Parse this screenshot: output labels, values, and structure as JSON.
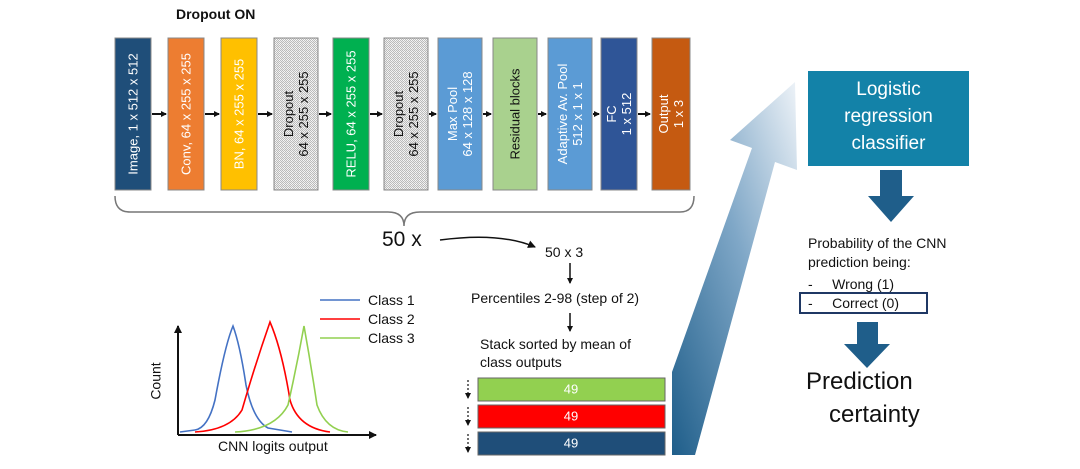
{
  "title": "Dropout ON",
  "colors": {
    "image_block": "#1f4e79",
    "conv_block": "#ed7d31",
    "bn_block": "#ffc000",
    "relu_block": "#00b050",
    "maxpool_block": "#5b9bd5",
    "residual_block": "#a9d18e",
    "adaptive_block": "#5b9bd5",
    "fc_block": "#2f5597",
    "output_block": "#c55a11",
    "logistic_block": "#1382a8",
    "stack_green": "#92d050",
    "stack_red": "#ff0000",
    "stack_navy": "#1f4e79",
    "class1": "#4472c4",
    "class2": "#ff0000",
    "class3": "#92d050"
  },
  "network": {
    "blocks": [
      {
        "id": "image",
        "line1": "Image, 1 x 512 x 512",
        "line2": ""
      },
      {
        "id": "conv",
        "line1": "Conv, 64 x 255 x 255",
        "line2": ""
      },
      {
        "id": "bn",
        "line1": "BN, 64 x 255 x 255",
        "line2": ""
      },
      {
        "id": "dropout1",
        "line1": "Dropout",
        "line2": "64 x 255 x 255"
      },
      {
        "id": "relu",
        "line1": "RELU, 64 x 255 x 255",
        "line2": ""
      },
      {
        "id": "dropout2",
        "line1": "Dropout",
        "line2": "64 x 255 x 255"
      },
      {
        "id": "maxpool",
        "line1": "Max Pool",
        "line2": "64 x 128 x 128"
      },
      {
        "id": "residual",
        "line1": "Residual blocks",
        "line2": ""
      },
      {
        "id": "adaptive",
        "line1": "Adaptive Av. Pool",
        "line2": "512 x 1 x 1"
      },
      {
        "id": "fc",
        "line1": "FC",
        "line2": "1 x 512"
      },
      {
        "id": "output",
        "line1": "Output",
        "line2": "1 x 3"
      }
    ]
  },
  "repeat_label": "50 x",
  "flow": {
    "step1": "50 x 3",
    "step2": "Percentiles 2-98 (step of 2)",
    "step3_line1": "Stack sorted by mean of",
    "step3_line2": "class outputs"
  },
  "stack": [
    {
      "value": "49",
      "color": "green"
    },
    {
      "value": "49",
      "color": "red"
    },
    {
      "value": "49",
      "color": "navy"
    }
  ],
  "chart": {
    "xlabel": "CNN  logits output",
    "ylabel": "Count",
    "legend": [
      "Class 1",
      "Class 2",
      "Class 3"
    ]
  },
  "classifier": {
    "line1": "Logistic",
    "line2": "regression",
    "line3": "classifier"
  },
  "probability": {
    "line1": "Probability of the CNN",
    "line2": "prediction being:",
    "item1": "-     Wrong (1)",
    "item2": "-     Correct (0)"
  },
  "result": {
    "line1": "Prediction",
    "line2": "certainty"
  }
}
